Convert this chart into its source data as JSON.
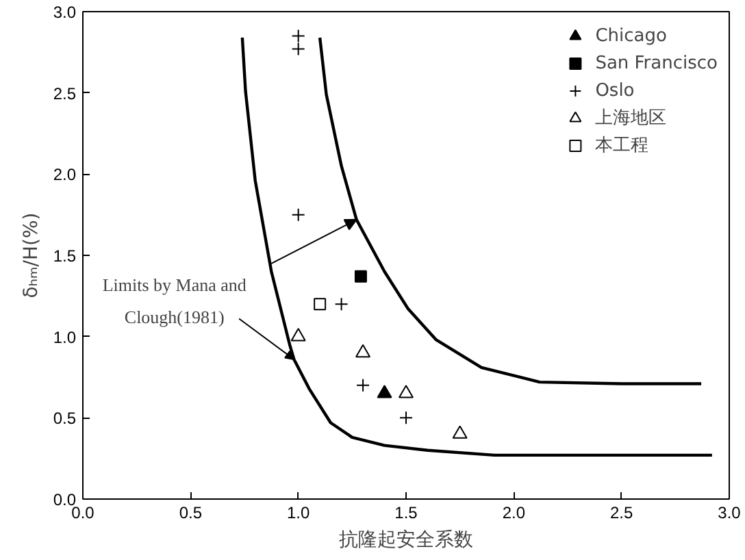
{
  "chart_data": {
    "type": "scatter",
    "xlabel": "抗隆起安全系数",
    "ylabel": "δₕₘ/H(%)",
    "xlim": [
      0,
      3
    ],
    "ylim": [
      0,
      3
    ],
    "xticks": [
      {
        "value": 0,
        "label": "0.0"
      },
      {
        "value": 0.5,
        "label": "0.5"
      },
      {
        "value": 1,
        "label": "1.0"
      },
      {
        "value": 1.5,
        "label": "1.5"
      },
      {
        "value": 2,
        "label": "2.0"
      },
      {
        "value": 2.5,
        "label": "2.5"
      },
      {
        "value": 3,
        "label": "3.0"
      }
    ],
    "yticks": [
      {
        "value": 0,
        "label": "0.0"
      },
      {
        "value": 0.5,
        "label": "0.5"
      },
      {
        "value": 1,
        "label": "1.0"
      },
      {
        "value": 1.5,
        "label": "1.5"
      },
      {
        "value": 2,
        "label": "2.0"
      },
      {
        "value": 2.5,
        "label": "2.5"
      },
      {
        "value": 3,
        "label": "3.0"
      }
    ],
    "grid": false,
    "legend": "top right",
    "annotations": [
      {
        "text": "Limits by Mana and Clough(1981)",
        "x": 0.98,
        "y": 0.86
      }
    ],
    "series": [
      {
        "name": "Chicago",
        "color": "#000000",
        "marker": "triangle",
        "x": [
          1.4
        ],
        "values": [
          0.65
        ]
      },
      {
        "name": "San Francisco",
        "color": "#000000",
        "marker": "square",
        "x": [
          1.29
        ],
        "values": [
          1.37
        ]
      },
      {
        "name": "Oslo",
        "color": "#000000",
        "marker": "cross",
        "x": [
          1.0,
          1.0,
          1.0,
          1.2,
          1.3,
          1.5
        ],
        "values": [
          2.85,
          2.77,
          1.75,
          1.2,
          0.7,
          0.5
        ]
      },
      {
        "name": "上海地区",
        "color": "#000000",
        "marker": "triangle_open",
        "x": [
          1.0,
          1.3,
          1.5,
          1.75
        ],
        "values": [
          1.0,
          0.9,
          0.65,
          0.4
        ]
      },
      {
        "name": "本工程",
        "color": "#000000",
        "marker": "square_open",
        "x": [
          1.1
        ],
        "values": [
          1.2
        ]
      },
      {
        "type": "line",
        "color": "#000000",
        "x": [
          0.74,
          0.755,
          0.8,
          0.875,
          0.96,
          0.98,
          1.05,
          1.15,
          1.25,
          1.4,
          1.6,
          1.91,
          2.92
        ],
        "values": [
          2.84,
          2.51,
          1.96,
          1.4,
          0.95,
          0.86,
          0.68,
          0.47,
          0.38,
          0.33,
          0.3,
          0.27,
          0.27
        ]
      },
      {
        "type": "line",
        "color": "#000000",
        "x": [
          1.1,
          1.13,
          1.2,
          1.27,
          1.4,
          1.51,
          1.64,
          1.85,
          2.12,
          2.5,
          2.87
        ],
        "values": [
          2.84,
          2.49,
          2.05,
          1.72,
          1.4,
          1.17,
          0.98,
          0.81,
          0.72,
          0.71,
          0.71
        ]
      }
    ]
  }
}
